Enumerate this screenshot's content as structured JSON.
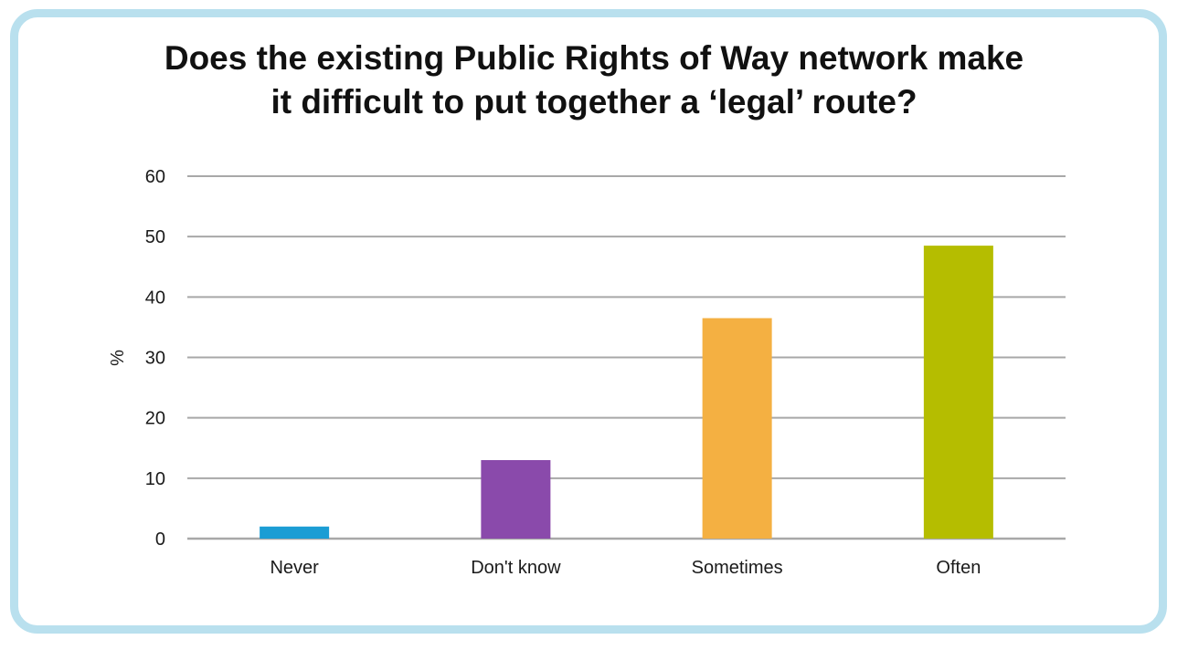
{
  "title_lines": [
    "Does the existing Public Rights of Way network make",
    "it difficult to put together a ‘legal’ route?"
  ],
  "chart_data": {
    "type": "bar",
    "categories": [
      "Never",
      "Don't know",
      "Sometimes",
      "Often"
    ],
    "values": [
      2,
      13,
      36.5,
      48.5
    ],
    "colors": [
      "#1b9dd4",
      "#8a4aab",
      "#f4b042",
      "#b5bd00"
    ],
    "ylabel": "%",
    "ylim": [
      0,
      60
    ],
    "yticks": [
      0,
      10,
      20,
      30,
      40,
      50,
      60
    ],
    "grid": true,
    "grid_color": "#a8a8a8"
  },
  "frame_color": "#b9e0ee"
}
